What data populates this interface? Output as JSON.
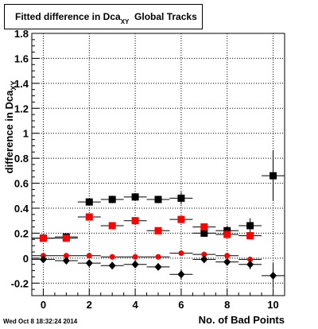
{
  "chart_data": {
    "type": "scatter",
    "title": {
      "main": "Fitted difference in Dca",
      "sub": "XY",
      "rest": "Global Tracks"
    },
    "xlabel": "No. of Bad Points",
    "ylabel": {
      "main": "difference in Dca",
      "sub": "XY"
    },
    "xlim": [
      -0.5,
      10.5
    ],
    "ylim": [
      -0.3,
      1.8
    ],
    "xticks": [
      0,
      2,
      4,
      6,
      8,
      10
    ],
    "yticks": [
      -0.2,
      0,
      0.2,
      0.4,
      0.6,
      0.8,
      1,
      1.2,
      1.4,
      1.6,
      1.8
    ],
    "ytick_labels": [
      "-0.2",
      "0",
      "0.2",
      "0.4",
      "0.6",
      "0.8",
      "1",
      "1.2",
      "1.4",
      "1.6",
      "1.8"
    ],
    "grid": true,
    "series": [
      {
        "color": "#000000",
        "marker": "square",
        "points": [
          {
            "x": 0,
            "y": 0.16,
            "err": 0.02
          },
          {
            "x": 1,
            "y": 0.17,
            "err": 0.02
          },
          {
            "x": 2,
            "y": 0.45,
            "err": 0.02
          },
          {
            "x": 3,
            "y": 0.47,
            "err": 0.03
          },
          {
            "x": 4,
            "y": 0.49,
            "err": 0.03
          },
          {
            "x": 5,
            "y": 0.47,
            "err": 0.03
          },
          {
            "x": 6,
            "y": 0.48,
            "err": 0.05
          },
          {
            "x": 7,
            "y": 0.2,
            "err": 0.03
          },
          {
            "x": 8,
            "y": 0.22,
            "err": 0.04
          },
          {
            "x": 9,
            "y": 0.26,
            "err": 0.06
          },
          {
            "x": 10,
            "y": 0.66,
            "err": 0.2
          }
        ]
      },
      {
        "color": "#ff0000",
        "marker": "square",
        "points": [
          {
            "x": 0,
            "y": 0.16,
            "err": 0.02
          },
          {
            "x": 1,
            "y": 0.16,
            "err": 0.02
          },
          {
            "x": 2,
            "y": 0.33,
            "err": 0.02
          },
          {
            "x": 3,
            "y": 0.26,
            "err": 0.02
          },
          {
            "x": 4,
            "y": 0.3,
            "err": 0.03
          },
          {
            "x": 5,
            "y": 0.22,
            "err": 0.02
          },
          {
            "x": 6,
            "y": 0.31,
            "err": 0.03
          },
          {
            "x": 7,
            "y": 0.25,
            "err": 0.03
          },
          {
            "x": 8,
            "y": 0.19,
            "err": 0.03
          },
          {
            "x": 9,
            "y": 0.18,
            "err": 0.03
          }
        ]
      },
      {
        "color": "#ff0000",
        "marker": "circle",
        "points": [
          {
            "x": 0,
            "y": 0.02,
            "err": 0.01
          },
          {
            "x": 1,
            "y": 0.02,
            "err": 0.01
          },
          {
            "x": 2,
            "y": 0.02,
            "err": 0.01
          },
          {
            "x": 3,
            "y": 0.01,
            "err": 0.01
          },
          {
            "x": 4,
            "y": 0.01,
            "err": 0.01
          },
          {
            "x": 5,
            "y": 0.01,
            "err": 0.01
          },
          {
            "x": 6,
            "y": 0.04,
            "err": 0.02
          },
          {
            "x": 7,
            "y": 0.03,
            "err": 0.02
          },
          {
            "x": 8,
            "y": 0.02,
            "err": 0.02
          },
          {
            "x": 9,
            "y": -0.01,
            "err": 0.02
          }
        ]
      },
      {
        "color": "#000000",
        "marker": "diamond",
        "points": [
          {
            "x": 0,
            "y": -0.01,
            "err": 0.01
          },
          {
            "x": 1,
            "y": -0.02,
            "err": 0.01
          },
          {
            "x": 2,
            "y": -0.04,
            "err": 0.01
          },
          {
            "x": 3,
            "y": -0.06,
            "err": 0.02
          },
          {
            "x": 4,
            "y": -0.05,
            "err": 0.02
          },
          {
            "x": 5,
            "y": -0.07,
            "err": 0.02
          },
          {
            "x": 6,
            "y": -0.13,
            "err": 0.04
          },
          {
            "x": 7,
            "y": -0.01,
            "err": 0.02
          },
          {
            "x": 8,
            "y": -0.03,
            "err": 0.03
          },
          {
            "x": 9,
            "y": -0.05,
            "err": 0.04
          },
          {
            "x": 10,
            "y": -0.14,
            "err": 0.1
          }
        ]
      }
    ]
  },
  "footer": {
    "timestamp": "Wed Oct  8 18:32:24 2014"
  }
}
